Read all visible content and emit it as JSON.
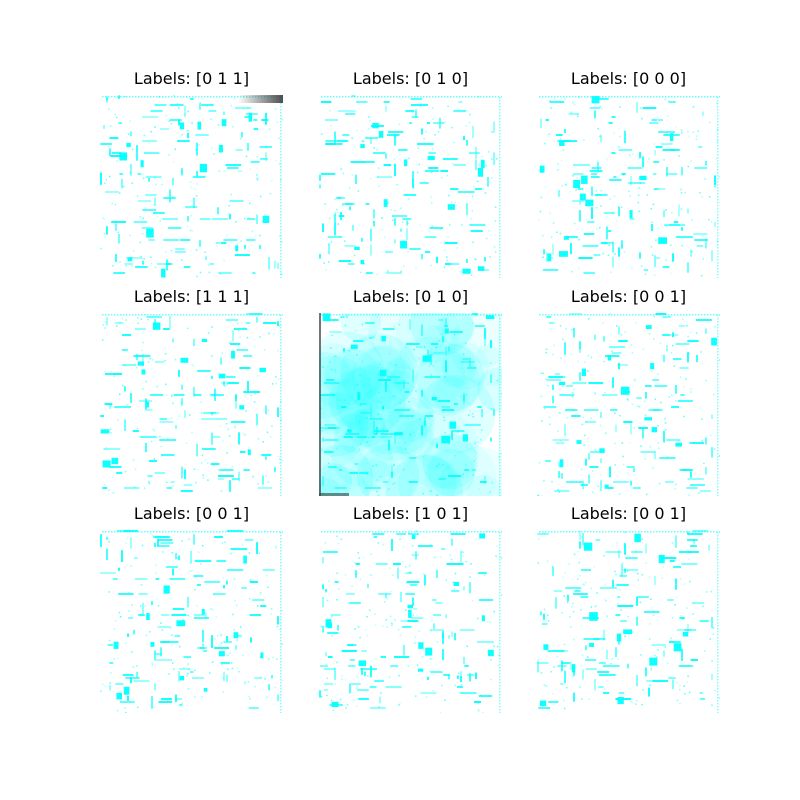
{
  "figure": {
    "panels": [
      {
        "title": "Labels: [0 1 1]",
        "variant": "plain",
        "corner_shadow": "top-right"
      },
      {
        "title": "Labels: [0 1 0]",
        "variant": "plain",
        "corner_shadow": ""
      },
      {
        "title": "Labels: [0 0 0]",
        "variant": "plain",
        "corner_shadow": ""
      },
      {
        "title": "Labels: [1 1 1]",
        "variant": "plain",
        "corner_shadow": ""
      },
      {
        "title": "Labels: [0 1 0]",
        "variant": "hazy",
        "corner_shadow": "left-bottom"
      },
      {
        "title": "Labels: [0 0 1]",
        "variant": "plain",
        "corner_shadow": ""
      },
      {
        "title": "Labels: [0 0 1]",
        "variant": "plain",
        "corner_shadow": ""
      },
      {
        "title": "Labels: [1 0 1]",
        "variant": "plain",
        "corner_shadow": ""
      },
      {
        "title": "Labels: [0 0 1]",
        "variant": "plain",
        "corner_shadow": ""
      }
    ],
    "colors": {
      "pixel": "#00ffff",
      "background": "#ffffff",
      "shadow": "#3a3a3a"
    }
  }
}
